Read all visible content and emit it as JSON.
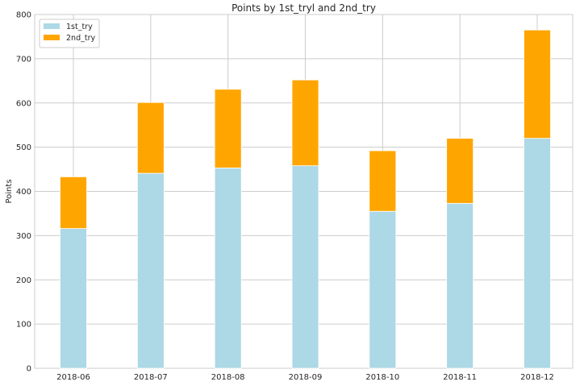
{
  "chart_data": {
    "type": "bar",
    "stacked": true,
    "title": "Points by 1st_tryl and 2nd_try",
    "xlabel": "",
    "ylabel": "Points",
    "categories": [
      "2018-06",
      "2018-07",
      "2018-08",
      "2018-09",
      "2018-10",
      "2018-11",
      "2018-12"
    ],
    "series": [
      {
        "name": "1st_try",
        "color": "#add8e6",
        "values": [
          316,
          441,
          453,
          458,
          355,
          373,
          520
        ]
      },
      {
        "name": "2nd_try",
        "color": "#ffa500",
        "values": [
          117,
          160,
          178,
          194,
          137,
          147,
          245
        ]
      }
    ],
    "ylim": [
      0,
      800
    ],
    "yticks": [
      "0",
      "100",
      "200",
      "300",
      "400",
      "500",
      "600",
      "700",
      "800"
    ],
    "grid": true,
    "legend_position": "top-left"
  }
}
